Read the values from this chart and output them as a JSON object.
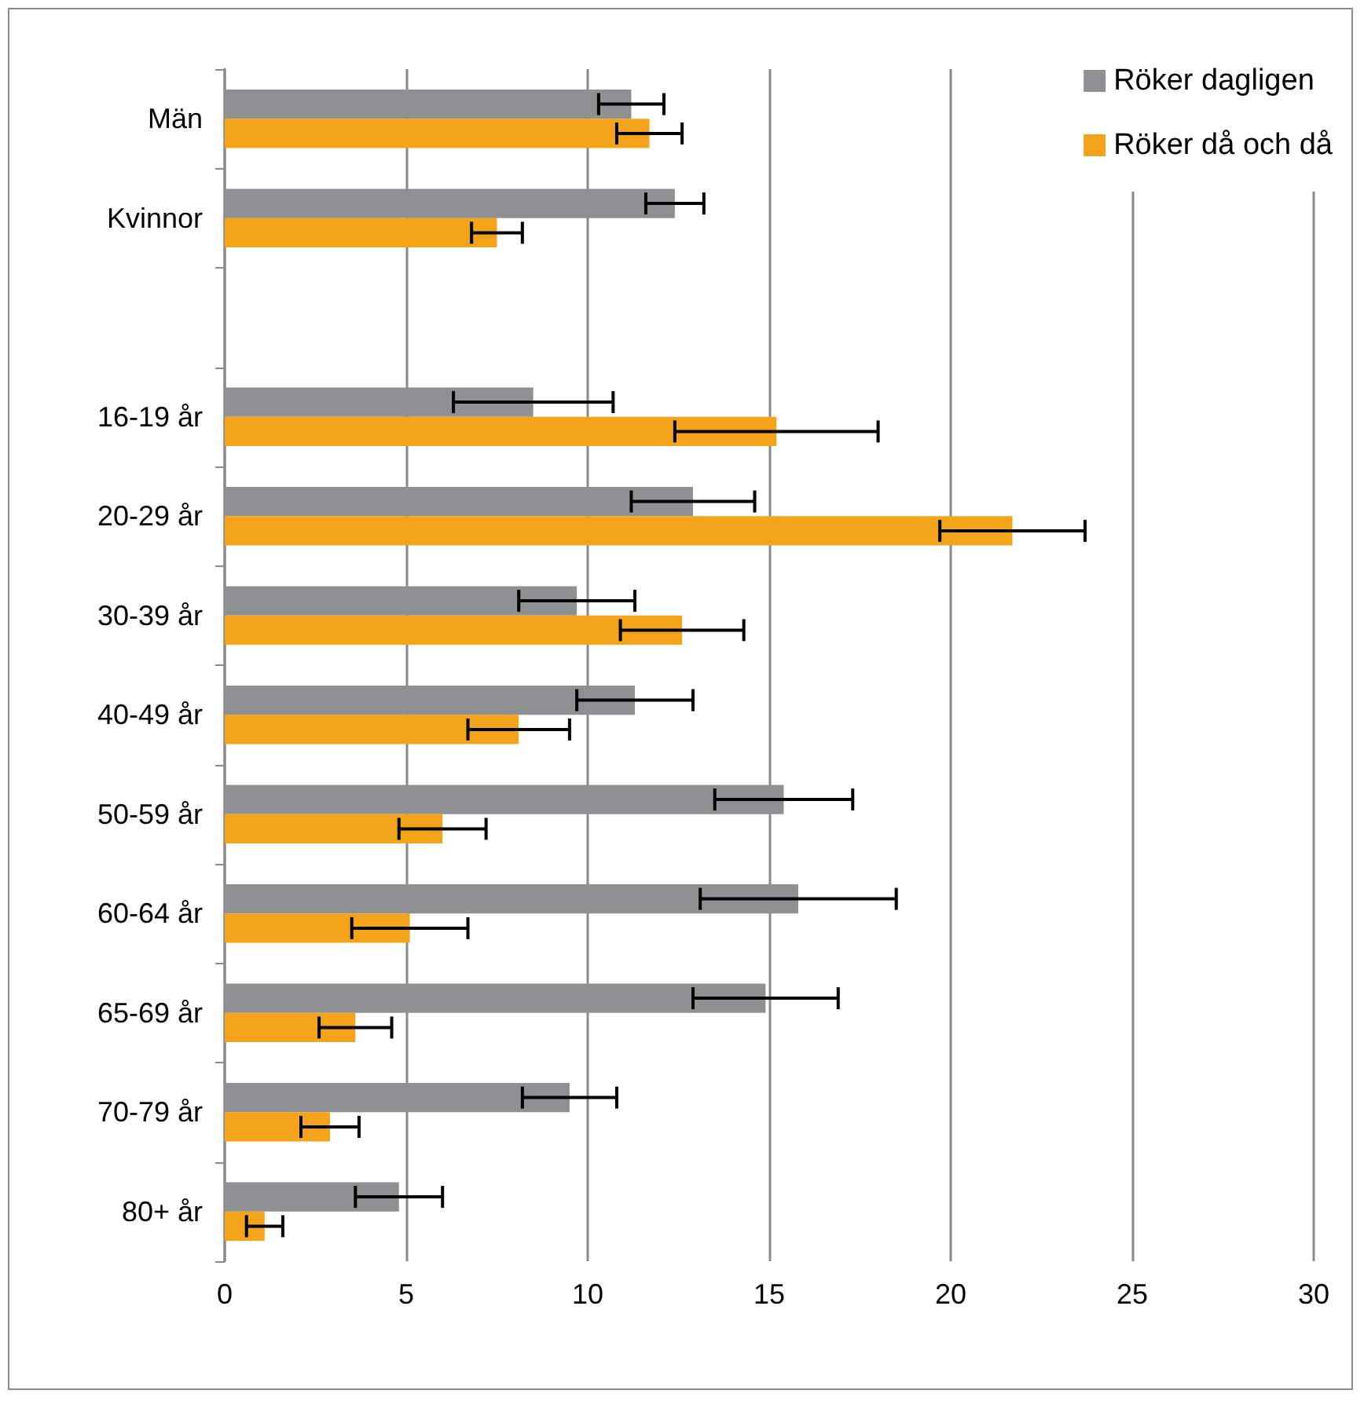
{
  "chart_data": {
    "type": "bar",
    "orientation": "horizontal",
    "categories": [
      "Män",
      "Kvinnor",
      null,
      "16-19 år",
      "20-29 år",
      "30-39 år",
      "40-49 år",
      "50-59 år",
      "60-64 år",
      "65-69 år",
      "70-79 år",
      "80+ år"
    ],
    "series": [
      {
        "name": "Röker dagligen",
        "color": "#8f9092",
        "values": [
          11.2,
          12.4,
          null,
          8.5,
          12.9,
          9.7,
          11.3,
          15.4,
          15.8,
          14.9,
          9.5,
          4.8
        ],
        "errors": [
          [
            10.3,
            12.1
          ],
          [
            11.6,
            13.2
          ],
          null,
          [
            6.3,
            10.7
          ],
          [
            11.2,
            14.6
          ],
          [
            8.1,
            11.3
          ],
          [
            9.7,
            12.9
          ],
          [
            13.5,
            17.3
          ],
          [
            13.1,
            18.5
          ],
          [
            12.9,
            16.9
          ],
          [
            8.2,
            10.8
          ],
          [
            3.6,
            6.0
          ]
        ]
      },
      {
        "name": "Röker då och då",
        "color": "#f4a41a",
        "values": [
          11.7,
          7.5,
          null,
          15.2,
          21.7,
          12.6,
          8.1,
          6.0,
          5.1,
          3.6,
          2.9,
          1.1
        ],
        "errors": [
          [
            10.8,
            12.6
          ],
          [
            6.8,
            8.2
          ],
          null,
          [
            12.4,
            18.0
          ],
          [
            19.7,
            23.7
          ],
          [
            10.9,
            14.3
          ],
          [
            6.7,
            9.5
          ],
          [
            4.8,
            7.2
          ],
          [
            3.5,
            6.7
          ],
          [
            2.6,
            4.6
          ],
          [
            2.1,
            3.7
          ],
          [
            0.6,
            1.6
          ]
        ]
      }
    ],
    "xlim": [
      0,
      30
    ],
    "xticks": [
      0,
      5,
      10,
      15,
      20,
      25,
      30
    ],
    "grid": "x",
    "legend": "top right"
  }
}
